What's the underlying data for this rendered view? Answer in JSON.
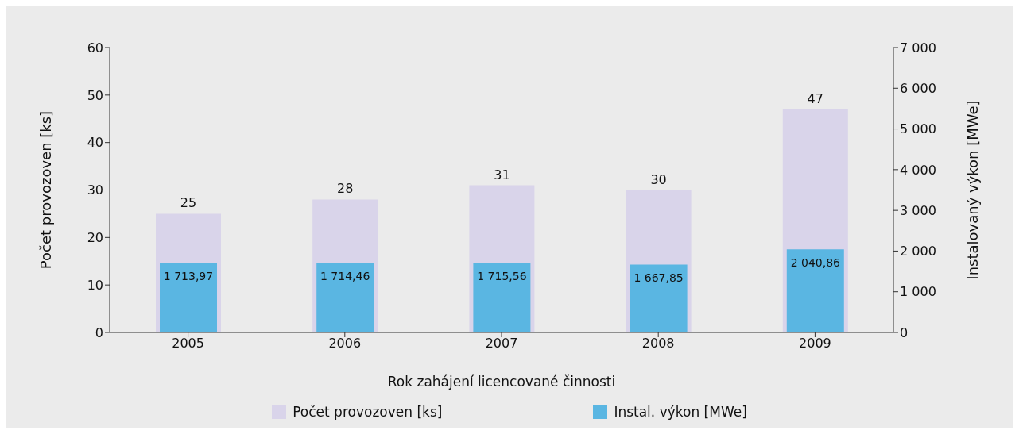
{
  "chart_data": {
    "type": "bar",
    "xlabel": "Rok zahájení licencované činnosti",
    "ylabel": "Počet provozoven [ks]",
    "y2label": "Instalovaný výkon [MWe]",
    "categories": [
      "2005",
      "2006",
      "2007",
      "2008",
      "2009"
    ],
    "series": [
      {
        "name": "Počet provozoven [ks]",
        "color": "#d9d4ea",
        "values": [
          25,
          28,
          31,
          30,
          47
        ],
        "value_labels": [
          "25",
          "28",
          "31",
          "30",
          "47"
        ]
      },
      {
        "name": "Instal. výkon [MWe]",
        "color": "#5ab6e2",
        "axis": "y2",
        "values": [
          1713.97,
          1714.46,
          1715.56,
          1667.85,
          2040.86
        ],
        "value_labels": [
          "1 713,97",
          "1 714,46",
          "1 715,56",
          "1 667,85",
          "2 040,86"
        ]
      }
    ],
    "ylim": [
      0,
      60
    ],
    "yticks": [
      0,
      10,
      20,
      30,
      40,
      50,
      60
    ],
    "y2lim": [
      0,
      7000
    ],
    "y2ticks": [
      0,
      {
        "value": 1000,
        "label": "1 000"
      },
      {
        "value": 2000,
        "label": "2 000"
      },
      {
        "value": 3000,
        "label": "3 000"
      },
      {
        "value": 4000,
        "label": "4 000"
      },
      {
        "value": 5000,
        "label": "5 000"
      },
      {
        "value": 6000,
        "label": "6 000"
      },
      {
        "value": 7000,
        "label": "7 000"
      }
    ],
    "grid": false,
    "legend": "bottom"
  }
}
